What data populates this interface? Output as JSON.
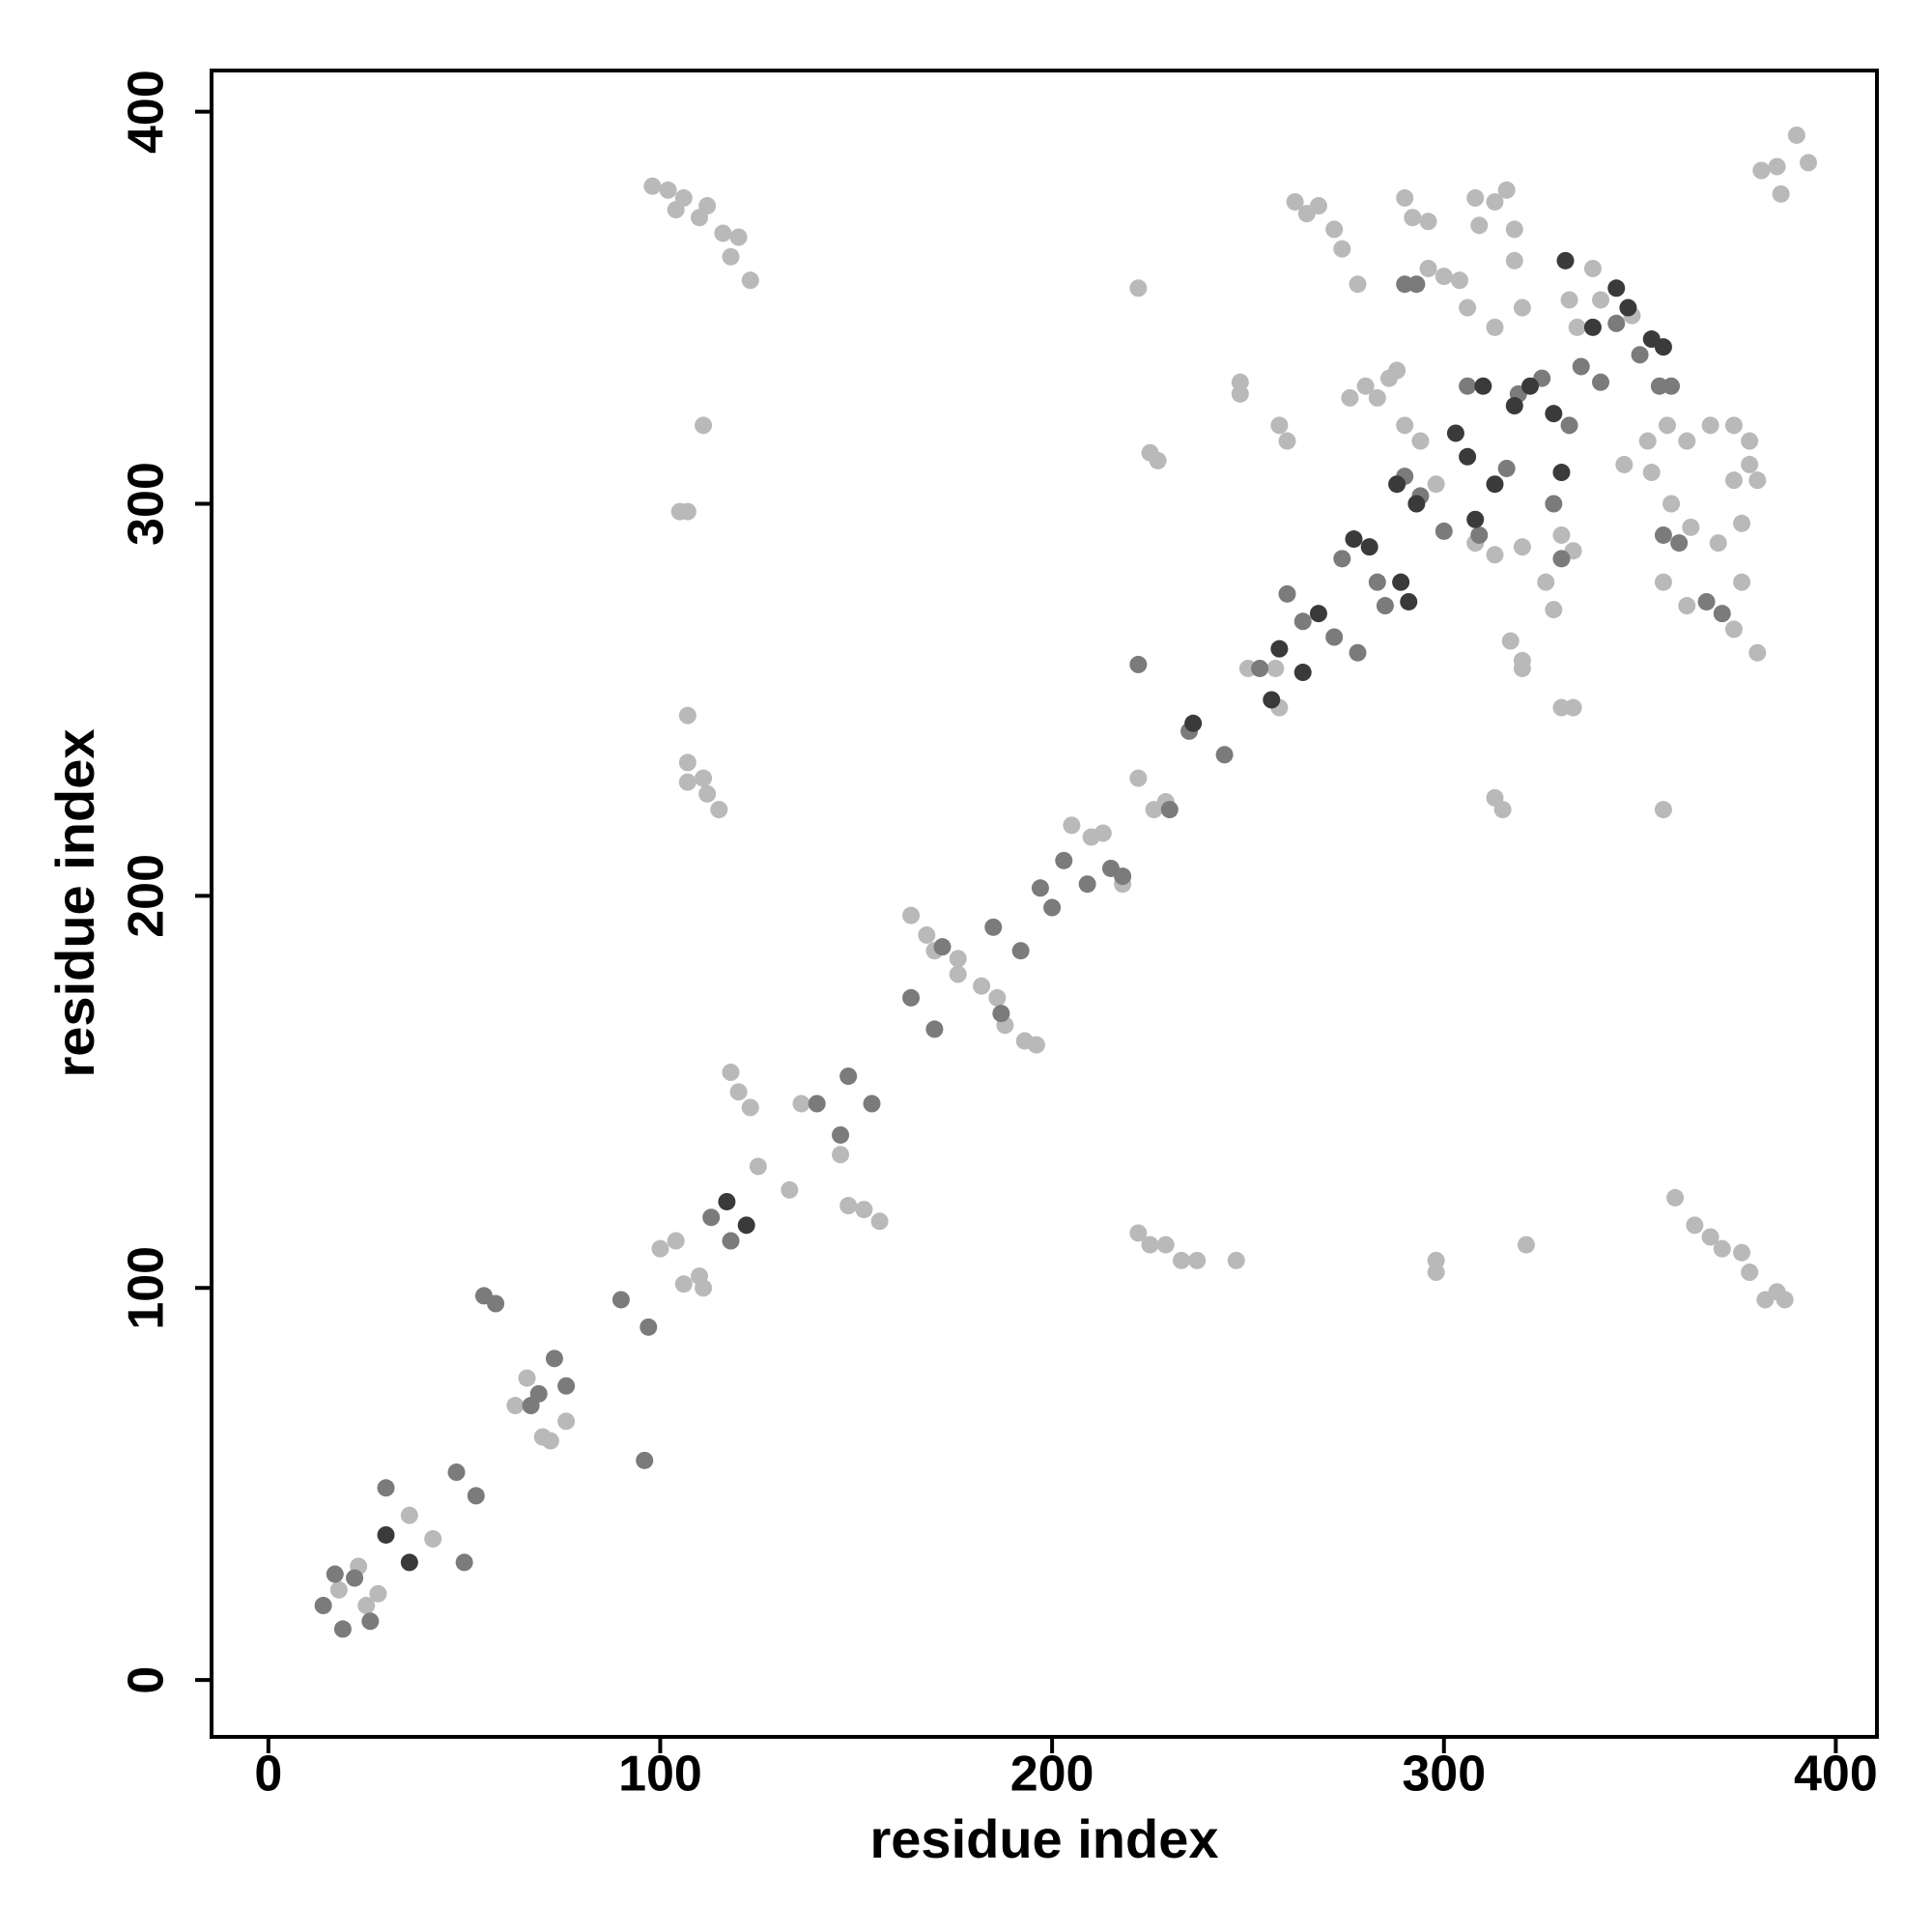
{
  "chart_data": {
    "type": "scatter",
    "xlabel": "residue index",
    "ylabel": "residue index",
    "xlim": [
      -14.5,
      410.5
    ],
    "ylim": [
      -14.5,
      410.5
    ],
    "xticks": [
      0,
      100,
      200,
      300,
      400
    ],
    "yticks": [
      0,
      100,
      200,
      300,
      400
    ],
    "series": [
      {
        "color": "#b9b9b9",
        "x": [
          18,
          23,
          25,
          28,
          36,
          42,
          63,
          66,
          70,
          72,
          76,
          100,
          104,
          106,
          110,
          111,
          118,
          120,
          123,
          125,
          133,
          136,
          146,
          148,
          152,
          156,
          98,
          102,
          104,
          106,
          110,
          112,
          116,
          118,
          120,
          123,
          111,
          105,
          107,
          107,
          107,
          107,
          111,
          112,
          115,
          164,
          168,
          170,
          176,
          176,
          182,
          186,
          188,
          193,
          196,
          205,
          210,
          213,
          218,
          222,
          226,
          229,
          222,
          225,
          227,
          248,
          248,
          257,
          250,
          258,
          258,
          260,
          262,
          265,
          268,
          272,
          274,
          278,
          276,
          280,
          283,
          286,
          288,
          290,
          292,
          296,
          290,
          294,
          298,
          296,
          300,
          304,
          308,
          309,
          313,
          306,
          313,
          316,
          318,
          320,
          318,
          317,
          320,
          320,
          313,
          315,
          308,
          313,
          320,
          326,
          330,
          333,
          328,
          330,
          333,
          332,
          338,
          346,
          352,
          357,
          362,
          368,
          374,
          378,
          353,
          358,
          363,
          356,
          362,
          376,
          374,
          380,
          370,
          376,
          380,
          378,
          374,
          381,
          385,
          386,
          390,
          393,
          222,
          225,
          229,
          233,
          237,
          247,
          298,
          298,
          321,
          356,
          359,
          364,
          368,
          371,
          376,
          378,
          382,
          385,
          387,
          334,
          340,
          348
        ],
        "values": [
          23,
          29,
          19,
          22,
          42,
          36,
          70,
          77,
          62,
          61,
          66,
          110,
          112,
          101,
          103,
          100,
          155,
          150,
          146,
          131,
          125,
          147,
          134,
          121,
          120,
          117,
          381,
          380,
          375,
          378,
          373,
          376,
          369,
          363,
          368,
          357,
          320,
          298,
          298,
          246,
          234,
          229,
          230,
          226,
          222,
          195,
          190,
          186,
          184,
          180,
          177,
          174,
          167,
          163,
          162,
          218,
          215,
          216,
          203,
          230,
          222,
          224,
          355,
          313,
          311,
          331,
          328,
          258,
          258,
          248,
          320,
          316,
          377,
          374,
          376,
          370,
          365,
          356,
          327,
          330,
          327,
          332,
          334,
          378,
          373,
          372,
          320,
          316,
          305,
          360,
          358,
          357,
          378,
          371,
          377,
          350,
          345,
          380,
          370,
          350,
          362,
          265,
          260,
          258,
          225,
          222,
          290,
          287,
          289,
          280,
          292,
          288,
          273,
          248,
          248,
          352,
          360,
          310,
          316,
          320,
          316,
          320,
          320,
          316,
          308,
          300,
          294,
          280,
          274,
          280,
          268,
          262,
          290,
          295,
          306,
          310,
          306,
          385,
          386,
          379,
          394,
          387,
          114,
          111,
          111,
          107,
          107,
          107,
          107,
          104,
          111,
          222,
          123,
          116,
          113,
          110,
          109,
          104,
          97,
          99,
          97,
          345,
          352,
          348
        ]
      },
      {
        "color": "#7b7b7b",
        "x": [
          14,
          17,
          19,
          22,
          26,
          30,
          48,
          50,
          53,
          55,
          58,
          67,
          69,
          73,
          76,
          90,
          96,
          97,
          113,
          118,
          140,
          146,
          148,
          154,
          164,
          170,
          172,
          185,
          187,
          192,
          197,
          200,
          203,
          209,
          215,
          218,
          235,
          244,
          253,
          260,
          264,
          272,
          274,
          278,
          283,
          285,
          290,
          293,
          290,
          294,
          300,
          306,
          309,
          316,
          319,
          325,
          328,
          330,
          332,
          335,
          340,
          344,
          350,
          355,
          358,
          356,
          360,
          367,
          371,
          222,
          230
        ],
        "values": [
          19,
          27,
          13,
          26,
          15,
          49,
          53,
          30,
          47,
          98,
          96,
          70,
          73,
          82,
          75,
          97,
          56,
          90,
          118,
          112,
          147,
          139,
          154,
          147,
          174,
          166,
          187,
          192,
          170,
          186,
          202,
          197,
          209,
          203,
          207,
          205,
          242,
          236,
          258,
          277,
          270,
          266,
          286,
          262,
          280,
          274,
          356,
          356,
          307,
          302,
          293,
          330,
          292,
          309,
          328,
          332,
          300,
          286,
          320,
          335,
          331,
          346,
          338,
          330,
          330,
          292,
          290,
          275,
          272,
          259,
          222
        ]
      },
      {
        "color": "#3a3a3a",
        "x": [
          30,
          36,
          117,
          122,
          258,
          256,
          264,
          268,
          277,
          281,
          289,
          291,
          293,
          303,
          306,
          310,
          313,
          318,
          322,
          328,
          330,
          331,
          338,
          344,
          347,
          353,
          356,
          236,
          288,
          308
        ],
        "values": [
          37,
          30,
          122,
          116,
          263,
          250,
          257,
          272,
          291,
          289,
          280,
          275,
          300,
          318,
          312,
          330,
          305,
          325,
          330,
          323,
          308,
          362,
          345,
          355,
          350,
          342,
          340,
          244,
          305,
          296
        ]
      }
    ]
  }
}
